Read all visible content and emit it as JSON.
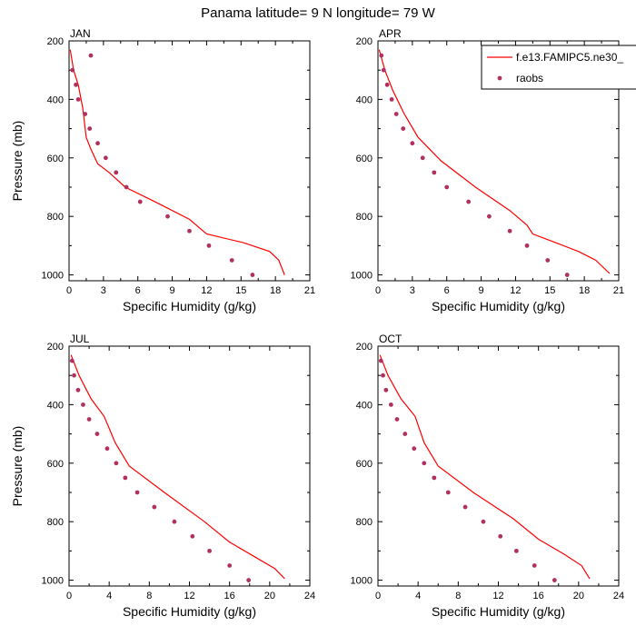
{
  "title": "Panama  latitude= 9 N longitude= 79 W",
  "colors": {
    "model": "#ff0000",
    "obs": "#b03060",
    "axes": "#000000"
  },
  "legend": {
    "model_label": "f.e13.FAMIPC5.ne30_",
    "obs_label": "raobs",
    "placement": "top-right of APR panel"
  },
  "chart_data": [
    {
      "type": "line",
      "panel": "JAN",
      "xlabel": "Specific Humidity (g/kg)",
      "ylabel": "Pressure (mb)",
      "xlim": [
        0,
        21
      ],
      "ylim": [
        1000,
        200
      ],
      "xticks": [
        0,
        3,
        6,
        9,
        12,
        15,
        18,
        21
      ],
      "yticks": [
        200,
        400,
        600,
        800,
        1000
      ],
      "series": [
        {
          "name": "f.e13.FAMIPC5.ne30_",
          "style": "line",
          "x": [
            0.1,
            0.4,
            0.8,
            1.2,
            1.5,
            1.9,
            2.5,
            3.5,
            4.9,
            7.5,
            10.5,
            12.0,
            15.2,
            17.5,
            18.3,
            18.8
          ],
          "y": [
            230,
            300,
            350,
            430,
            530,
            570,
            620,
            650,
            700,
            750,
            810,
            860,
            890,
            920,
            950,
            1000
          ]
        },
        {
          "name": "raobs",
          "style": "markers",
          "x": [
            1.9,
            0.3,
            0.6,
            0.8,
            1.4,
            1.8,
            2.5,
            3.2,
            4.1,
            5.0,
            6.2,
            8.6,
            10.5,
            12.2,
            14.2,
            16.0
          ],
          "y": [
            250,
            300,
            350,
            400,
            450,
            500,
            550,
            600,
            650,
            700,
            750,
            800,
            850,
            900,
            950,
            1000
          ]
        }
      ]
    },
    {
      "type": "line",
      "panel": "APR",
      "xlabel": "Specific Humidity (g/kg)",
      "ylabel": "",
      "xlim": [
        0,
        21
      ],
      "ylim": [
        1000,
        200
      ],
      "xticks": [
        0,
        3,
        6,
        9,
        12,
        15,
        18,
        21
      ],
      "yticks": [
        200,
        400,
        600,
        800,
        1000
      ],
      "series": [
        {
          "name": "f.e13.FAMIPC5.ne30_",
          "style": "line",
          "x": [
            0.1,
            0.6,
            1.3,
            2.3,
            3.5,
            5.5,
            8.5,
            11.5,
            13.0,
            13.5,
            15.5,
            17.5,
            19.0,
            20.2
          ],
          "y": [
            230,
            300,
            370,
            450,
            530,
            610,
            700,
            780,
            830,
            860,
            890,
            920,
            950,
            995
          ]
        },
        {
          "name": "raobs",
          "style": "markers",
          "x": [
            0.3,
            0.5,
            0.8,
            1.2,
            1.6,
            2.2,
            3.0,
            3.9,
            4.9,
            6.0,
            7.9,
            9.7,
            11.5,
            13.0,
            14.8,
            16.5
          ],
          "y": [
            250,
            300,
            350,
            400,
            450,
            500,
            550,
            600,
            650,
            700,
            750,
            800,
            850,
            900,
            950,
            1000
          ]
        }
      ]
    },
    {
      "type": "line",
      "panel": "JUL",
      "xlabel": "Specific Humidity (g/kg)",
      "ylabel": "Pressure (mb)",
      "xlim": [
        0,
        24
      ],
      "ylim": [
        1000,
        200
      ],
      "xticks": [
        0,
        4,
        8,
        12,
        16,
        20,
        24
      ],
      "yticks": [
        200,
        400,
        600,
        800,
        1000
      ],
      "series": [
        {
          "name": "f.e13.FAMIPC5.ne30_",
          "style": "line",
          "x": [
            0.2,
            1.0,
            2.2,
            3.5,
            4.6,
            6.0,
            9.5,
            13.5,
            16.0,
            18.5,
            20.5,
            21.5
          ],
          "y": [
            230,
            300,
            380,
            440,
            530,
            610,
            700,
            800,
            870,
            920,
            960,
            995
          ]
        },
        {
          "name": "raobs",
          "style": "markers",
          "x": [
            0.3,
            0.5,
            0.9,
            1.4,
            2.0,
            2.8,
            3.8,
            4.7,
            5.6,
            6.8,
            8.5,
            10.5,
            12.3,
            14.0,
            16.0,
            17.9
          ],
          "y": [
            250,
            300,
            350,
            400,
            450,
            500,
            550,
            600,
            650,
            700,
            750,
            800,
            850,
            900,
            950,
            1000
          ]
        }
      ]
    },
    {
      "type": "line",
      "panel": "OCT",
      "xlabel": "Specific Humidity (g/kg)",
      "ylabel": "",
      "xlim": [
        0,
        24
      ],
      "ylim": [
        1000,
        200
      ],
      "xticks": [
        0,
        4,
        8,
        12,
        16,
        20,
        24
      ],
      "yticks": [
        200,
        400,
        600,
        800,
        1000
      ],
      "series": [
        {
          "name": "f.e13.FAMIPC5.ne30_",
          "style": "line",
          "x": [
            0.2,
            1.0,
            2.3,
            3.7,
            4.6,
            6.0,
            9.5,
            13.5,
            16.0,
            18.5,
            20.3,
            21.1
          ],
          "y": [
            230,
            300,
            380,
            440,
            530,
            610,
            700,
            790,
            860,
            910,
            950,
            995
          ]
        },
        {
          "name": "raobs",
          "style": "markers",
          "x": [
            0.3,
            0.5,
            0.8,
            1.3,
            1.9,
            2.7,
            3.6,
            4.6,
            5.6,
            7.0,
            8.7,
            10.5,
            12.2,
            13.8,
            15.6,
            17.6
          ],
          "y": [
            250,
            300,
            350,
            400,
            450,
            500,
            550,
            600,
            650,
            700,
            750,
            800,
            850,
            900,
            950,
            1000
          ]
        }
      ]
    }
  ]
}
